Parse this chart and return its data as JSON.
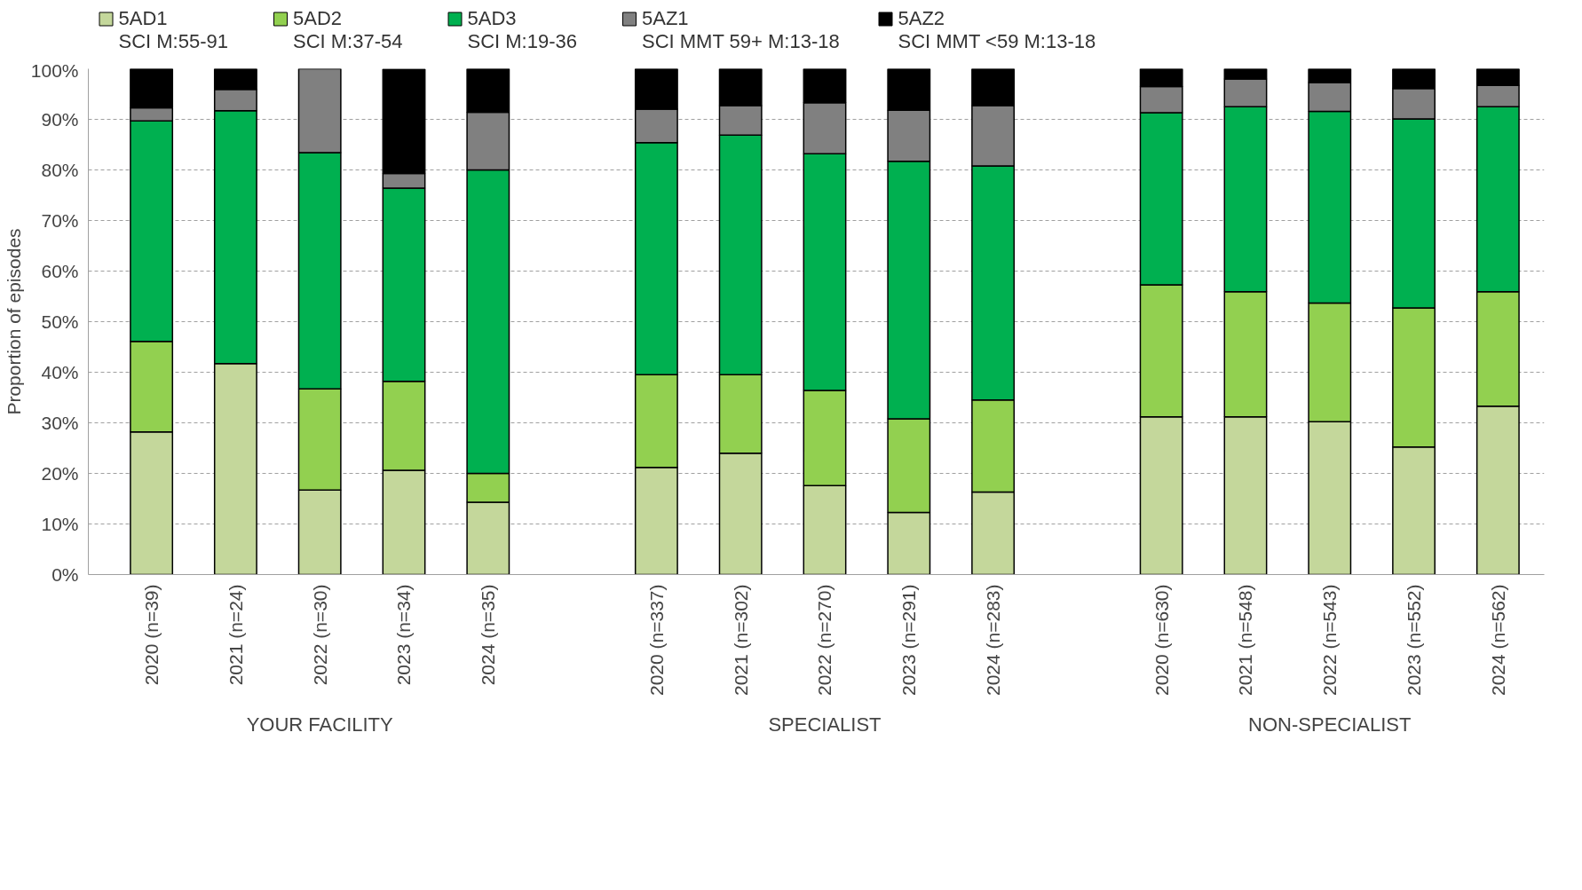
{
  "chart_data": {
    "type": "bar",
    "stacked": true,
    "ylabel": "Proportion of episodes",
    "categories": [
      "2020 (n=39)",
      "2021 (n=24)",
      "2022 (n=30)",
      "2023 (n=34)",
      "2024 (n=35)",
      "2020 (n=337)",
      "2021 (n=302)",
      "2022 (n=270)",
      "2023 (n=291)",
      "2024 (n=283)",
      "2020 (n=630)",
      "2021 (n=548)",
      "2022 (n=543)",
      "2023 (n=552)",
      "2024 (n=562)"
    ],
    "series": [
      {
        "name": "5AD1\nSCI M:55-91",
        "color": "#c4d79b",
        "values": [
          28.2,
          41.7,
          16.7,
          20.6,
          14.3,
          21.2,
          24.0,
          17.6,
          12.3,
          16.3,
          31.2,
          31.2,
          30.2,
          25.2,
          33.3
        ]
      },
      {
        "name": "5AD2\nSCI M:37-54",
        "color": "#92d050",
        "values": [
          17.9,
          0,
          20.0,
          17.6,
          5.7,
          18.3,
          15.5,
          18.8,
          18.5,
          18.2,
          26.1,
          24.7,
          23.5,
          27.5,
          22.6
        ]
      },
      {
        "name": "5AD3\nSCI M:19-36",
        "color": "#00b050",
        "values": [
          43.6,
          50.0,
          46.7,
          38.2,
          60.0,
          45.9,
          47.4,
          46.8,
          50.9,
          46.3,
          34.0,
          36.6,
          37.9,
          37.4,
          36.6
        ]
      },
      {
        "name": "5AZ1\nSCI MMT 59+ M:13-18",
        "color": "#808080",
        "values": [
          2.6,
          4.2,
          16.7,
          2.9,
          11.4,
          6.6,
          5.8,
          10.1,
          10.1,
          11.9,
          5.2,
          5.5,
          5.7,
          6.0,
          4.2
        ]
      },
      {
        "name": "5AZ2\nSCI MMT <59 M:13-18",
        "color": "#000000",
        "values": [
          7.7,
          4.2,
          0,
          20.6,
          8.6,
          8.0,
          7.3,
          6.7,
          8.2,
          7.3,
          3.5,
          2.0,
          2.7,
          3.9,
          3.3
        ]
      }
    ],
    "ylim": [
      0,
      100
    ],
    "yticks": [
      {
        "value": 0,
        "label": "0%"
      },
      {
        "value": 10,
        "label": "10%"
      },
      {
        "value": 20,
        "label": "20%"
      },
      {
        "value": 30,
        "label": "30%"
      },
      {
        "value": 40,
        "label": "40%"
      },
      {
        "value": 50,
        "label": "50%"
      },
      {
        "value": 60,
        "label": "60%"
      },
      {
        "value": 70,
        "label": "70%"
      },
      {
        "value": 80,
        "label": "80%"
      },
      {
        "value": 90,
        "label": "90%"
      },
      {
        "value": 100,
        "label": "100%"
      }
    ],
    "grid": "y",
    "legend": "top",
    "annotations": [
      "YOUR FACILITY",
      "SPECIALIST",
      "NON-SPECIALIST"
    ]
  }
}
